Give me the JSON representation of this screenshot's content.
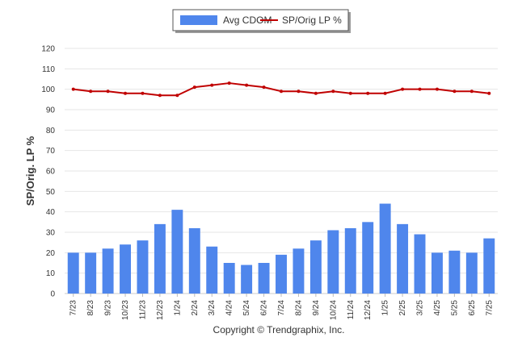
{
  "chart_data": {
    "type": "bar",
    "categories": [
      "7/23",
      "8/23",
      "9/23",
      "10/23",
      "11/23",
      "12/23",
      "1/24",
      "2/24",
      "3/24",
      "4/24",
      "5/24",
      "6/24",
      "7/24",
      "8/24",
      "9/24",
      "10/24",
      "11/24",
      "12/24",
      "1/25",
      "2/25",
      "3/25",
      "4/25",
      "5/25",
      "6/25",
      "7/25"
    ],
    "series": [
      {
        "name": "Avg CDOM",
        "type": "bar",
        "color": "#4f86ec",
        "values": [
          20,
          20,
          22,
          24,
          26,
          34,
          41,
          32,
          23,
          15,
          14,
          15,
          19,
          22,
          26,
          31,
          32,
          35,
          44,
          34,
          29,
          20,
          21,
          20,
          27
        ]
      },
      {
        "name": "SP/Orig LP %",
        "type": "line",
        "color": "#c00000",
        "values": [
          100,
          99,
          99,
          98,
          98,
          97,
          97,
          101,
          102,
          103,
          102,
          101,
          99,
          99,
          98,
          99,
          98,
          98,
          98,
          100,
          100,
          100,
          99,
          99,
          98
        ]
      }
    ],
    "ylabel": "SP/Orig. LP %",
    "ylim": [
      0,
      120
    ],
    "yticks": [
      0,
      10,
      20,
      30,
      40,
      50,
      60,
      70,
      80,
      90,
      100,
      110,
      120
    ],
    "grid": true,
    "legend_position": "top-center"
  },
  "copyright": "Copyright © Trendgraphix, Inc."
}
